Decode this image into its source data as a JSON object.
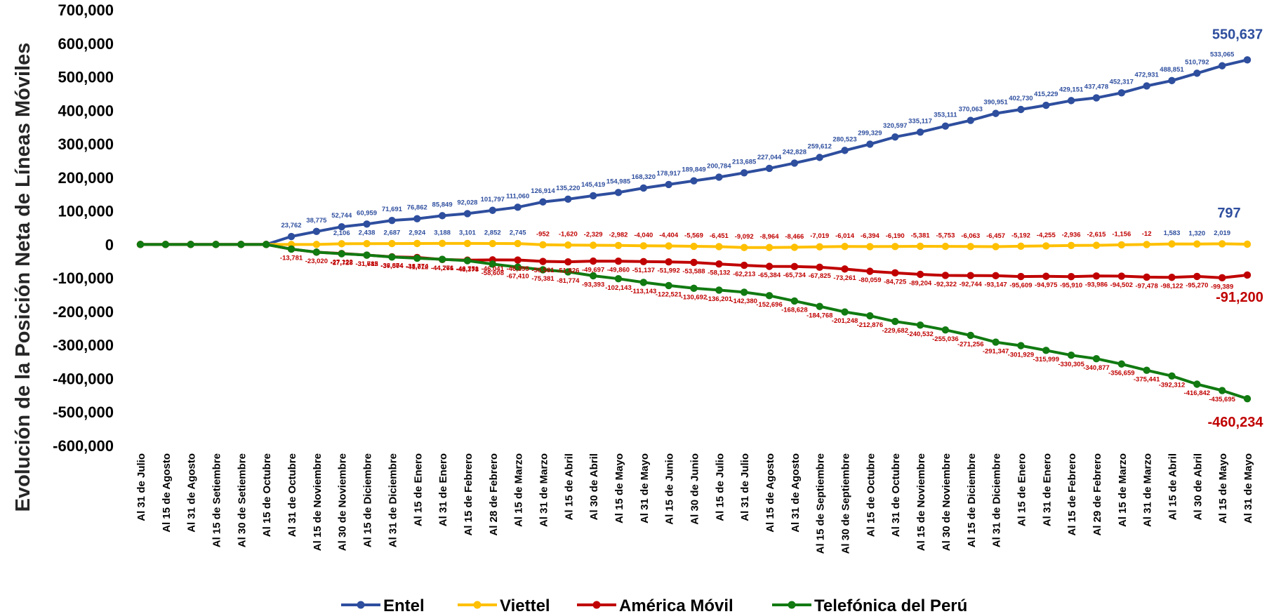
{
  "chart_data": {
    "type": "line",
    "ylabel": "Evolución de la Posición Neta de Líneas Móviles",
    "xlabel": "",
    "ylim": [
      -600000,
      700000
    ],
    "yticks": [
      700000,
      600000,
      500000,
      400000,
      300000,
      200000,
      100000,
      0,
      -100000,
      -200000,
      -300000,
      -400000,
      -500000,
      -600000
    ],
    "ytick_labels": [
      "700,000",
      "600,000",
      "500,000",
      "400,000",
      "300,000",
      "200,000",
      "100,000",
      "0",
      "-100,000",
      "-200,000",
      "-300,000",
      "-400,000",
      "-500,000",
      "-600,000"
    ],
    "grid": false,
    "legend": "bottom",
    "categories": [
      "Al 31 de Julio",
      "Al 15 de Agosto",
      "Al 31 de Agosto",
      "Al 15 de Setiembre",
      "Al 30 de Setiembre",
      "Al 15 de Octubre",
      "Al 31 de Octubre",
      "Al 15 de Noviembre",
      "Al 30 de Noviembre",
      "Al 15 de Diciembre",
      "Al 31 de Diciembre",
      "Al 15 de Enero",
      "Al 31 de Enero",
      "Al 15 de Febrero",
      "Al 28 de Febrero",
      "Al 15 de Marzo",
      "Al 31 de Marzo",
      "Al 15 de Abril",
      "Al 30 de Abril",
      "Al 15 de Mayo",
      "Al 31 de Mayo",
      "Al 15 de Junio",
      "Al 30 de Junio",
      "Al 15  de Julio",
      "Al 31 de Julio",
      "Al 15 de Agosto",
      "Al 31 de Agosto",
      "Al 15 de Septiembre",
      "Al 30 de Septiembre",
      "Al 15 de Octubre",
      "Al 31 de Octubre",
      "Al 15 de Noviembre",
      "Al 30 de Noviembre",
      "Al 15 de Diciembre",
      "Al 31 de Diciembre",
      "Al 15 de Enero",
      "Al 31 de Enero",
      "Al 15 de Febrero",
      "Al 29 de Febrero",
      "Al 15 de Marzo",
      "Al 31 de Marzo",
      "Al 15 de Abril",
      "Al 30 de Abril",
      "Al 15 de Mayo",
      "Al 31 de Mayo"
    ],
    "series": [
      {
        "name": "Entel",
        "color": "#2E4E9E",
        "values": [
          0,
          0,
          0,
          0,
          0,
          0,
          23762,
          38775,
          52744,
          60959,
          71691,
          76862,
          85849,
          92028,
          101797,
          111060,
          126914,
          135220,
          145419,
          154985,
          168320,
          178917,
          189849,
          200784,
          213685,
          227044,
          242828,
          259612,
          280523,
          299329,
          320597,
          335117,
          353111,
          370063,
          390951,
          402730,
          415229,
          429151,
          437478,
          452317,
          472931,
          488851,
          510792,
          533065,
          550637
        ],
        "labels": [
          "",
          "",
          "",
          "",
          "",
          "",
          "23,762",
          "38,775",
          "52,744",
          "60,959",
          "71,691",
          "76,862",
          "85,849",
          "92,028",
          "101,797",
          "111,060",
          "126,914",
          "135,220",
          "145,419",
          "154,985",
          "168,320",
          "178,917",
          "189,849",
          "200,784",
          "213,685",
          "227,044",
          "242,828",
          "259,612",
          "280,523",
          "299,329",
          "320,597",
          "335,117",
          "353,111",
          "370,063",
          "390,951",
          "402,730",
          "415,229",
          "429,151",
          "437,478",
          "452,317",
          "472,931",
          "488,851",
          "510,792",
          "533,065",
          ""
        ],
        "end_label": "550,637"
      },
      {
        "name": "Viettel",
        "color": "#FFC000",
        "values": [
          0,
          0,
          0,
          0,
          0,
          0,
          0,
          0,
          2106,
          2438,
          2687,
          2924,
          3188,
          3101,
          2852,
          2745,
          -952,
          -1620,
          -2329,
          -2982,
          -4040,
          -4404,
          -5569,
          -6451,
          -9092,
          -8964,
          -8466,
          -7019,
          -6014,
          -6394,
          -6190,
          -5381,
          -5753,
          -6063,
          -6457,
          -5192,
          -4255,
          -2936,
          -2615,
          -1156,
          -12,
          1583,
          1320,
          2019,
          797
        ],
        "labels": [
          "",
          "",
          "",
          "",
          "",
          "",
          "",
          "",
          "2,106",
          "2,438",
          "2,687",
          "2,924",
          "3,188",
          "3,101",
          "2,852",
          "2,745",
          "-952",
          "-1,620",
          "-2,329",
          "-2,982",
          "-4,040",
          "-4,404",
          "-5,569",
          "-6,451",
          "-9,092",
          "-8,964",
          "-8,466",
          "-7,019",
          "-6,014",
          "-6,394",
          "-6,190",
          "-5,381",
          "-5,753",
          "-6,063",
          "-6,457",
          "-5,192",
          "-4,255",
          "-2,936",
          "-2,615",
          "-1,156",
          "-12",
          "1,583",
          "1,320",
          "2,019",
          ""
        ],
        "end_label": "797"
      },
      {
        "name": "América Móvil",
        "color": "#C00000",
        "values": [
          0,
          0,
          0,
          0,
          0,
          0,
          -13781,
          -23020,
          -27122,
          -31685,
          -36874,
          -38774,
          -44776,
          -46751,
          -46041,
          -46395,
          -50581,
          -51826,
          -49697,
          -49860,
          -51137,
          -51992,
          -53588,
          -58132,
          -62213,
          -65384,
          -65734,
          -67825,
          -73261,
          -80059,
          -84725,
          -89204,
          -92322,
          -92744,
          -93147,
          -95609,
          -94975,
          -95910,
          -93986,
          -94502,
          -97478,
          -98122,
          -95270,
          -99389,
          -91200
        ],
        "labels": [
          "",
          "",
          "",
          "",
          "",
          "",
          "-13,781",
          "-23,020",
          "-27,122",
          "-31,685",
          "-36,874",
          "-38,774",
          "-44,776",
          "-46,751",
          "-46,041",
          "-46,395",
          "-50,581",
          "-51,826",
          "-49,697",
          "-49,860",
          "-51,137",
          "-51,992",
          "-53,588",
          "-58,132",
          "-62,213",
          "-65,384",
          "-65,734",
          "-67,825",
          "-73,261",
          "-80,059",
          "-84,725",
          "-89,204",
          "-92,322",
          "-92,744",
          "-93,147",
          "-95,609",
          "-94,975",
          "-95,910",
          "-93,986",
          "-94,502",
          "-97,478",
          "-98,122",
          "-95,270",
          "-99,389",
          ""
        ],
        "end_label": "-91,200"
      },
      {
        "name": "Telefónica del Perú",
        "color": "#117A11",
        "values": [
          0,
          0,
          0,
          0,
          0,
          0,
          -13781,
          -23020,
          -27728,
          -31712,
          -37504,
          -41012,
          -44261,
          -48378,
          -58608,
          -67410,
          -75381,
          -81774,
          -93393,
          -102143,
          -113143,
          -122521,
          -130692,
          -136201,
          -142380,
          -152696,
          -168628,
          -184768,
          -201248,
          -212876,
          -229682,
          -240532,
          -255036,
          -271256,
          -291347,
          -301929,
          -315999,
          -330305,
          -340877,
          -356659,
          -375441,
          -392312,
          -416842,
          -435695,
          -460234
        ],
        "labels": [
          "",
          "",
          "",
          "",
          "",
          "",
          "",
          "",
          "-27,728",
          "-31,712",
          "-37,504",
          "-41,012",
          "-44,261",
          "-48,378",
          "-58,608",
          "-67,410",
          "-75,381",
          "-81,774",
          "-93,393",
          "-102,143",
          "-113,143",
          "-122,521",
          "-130,692",
          "-136,201",
          "-142,380",
          "-152,696",
          "-168,628",
          "-184,768",
          "-201,248",
          "-212,876",
          "-229,682",
          "-240,532",
          "-255,036",
          "-271,256",
          "-291,347",
          "-301,929",
          "-315,999",
          "-330,305",
          "-340,877",
          "-356,659",
          "-375,441",
          "-392,312",
          "-416,842",
          "-435,695",
          ""
        ],
        "end_label": "-460,234"
      }
    ]
  }
}
